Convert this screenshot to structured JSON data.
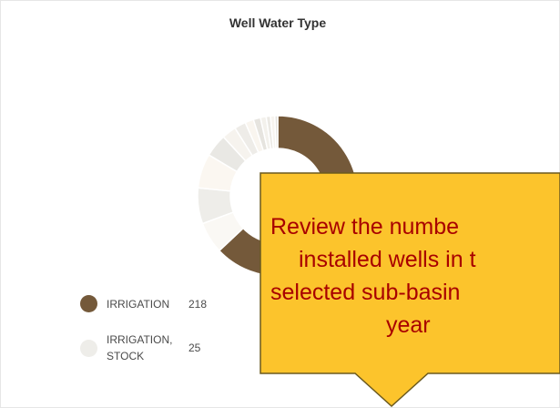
{
  "chart_data": {
    "type": "pie",
    "title": "Well Water Type",
    "donut": true,
    "categories": [
      "IRRIGATION",
      null,
      "IRRIGATION, STOCK",
      null,
      null,
      null,
      null,
      null,
      null,
      null,
      null,
      null,
      null
    ],
    "values": [
      218,
      22,
      25,
      24,
      16,
      10,
      8,
      6,
      5,
      4,
      3,
      3,
      2
    ],
    "colors": [
      "#74593a",
      "#faf8f4",
      "#eeede9",
      "#fbf7f1",
      "#e9e8e4",
      "#f6f3ee",
      "#eeece8",
      "#f9f5ef",
      "#e6e4df",
      "#f3f1ec",
      "#ebe9e4",
      "#f7f4ef",
      "#e4e2dd"
    ],
    "legend": true
  },
  "callout": {
    "lines": [
      "Review the numbe",
      "installed wells in t",
      "selected sub-basin",
      "year"
    ]
  }
}
